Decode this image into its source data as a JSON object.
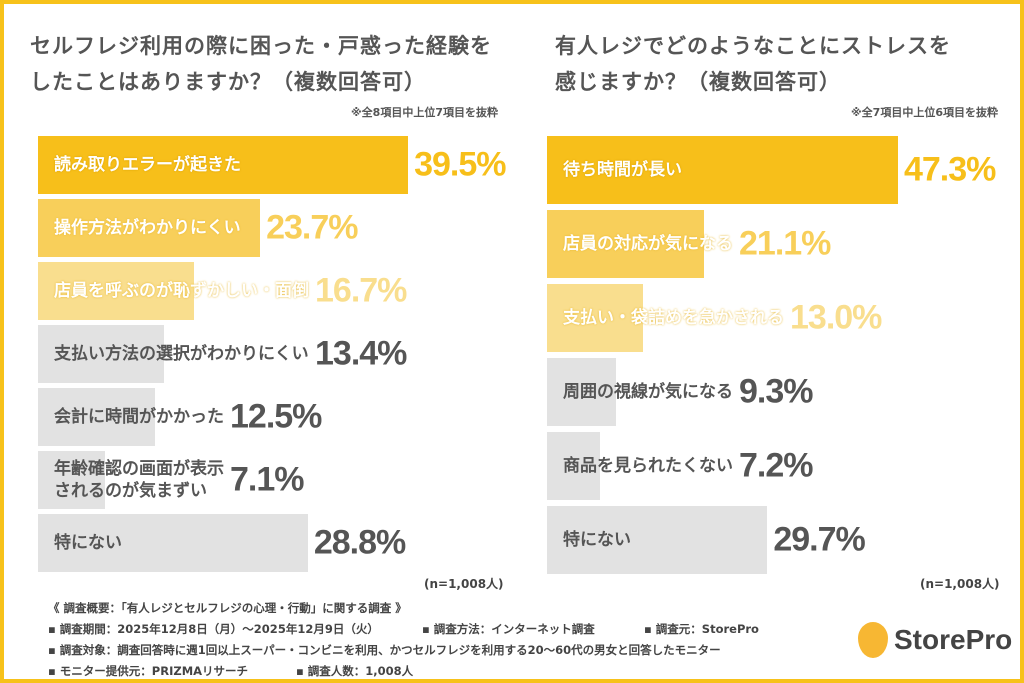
{
  "colors": {
    "accent": "#F7C21A",
    "bar1": "#F7BF1A",
    "bar2": "#F8CF5A",
    "bar3": "#F9DE8E",
    "gray": "#E2E2E2",
    "grayText": "#555555"
  },
  "chart_data": [
    {
      "type": "bar",
      "orientation": "horizontal",
      "title_line1": "セルフレジ利用の際に困った・戸惑った経験を",
      "title_line2": "したことはありますか？（複数回答可）",
      "note": "※全8項目中上位7項目を抜粋",
      "n_label": "(n=1,008人)",
      "categories": [
        "読み取りエラーが起きた",
        "操作方法がわかりにくい",
        "店員を呼ぶのが恥ずかしい・面倒",
        "支払い方法の選択がわかりにくい",
        "会計に時間がかかった",
        "年齢確認の画面が表示\nされるのが気まずい",
        "特にない"
      ],
      "values": [
        39.5,
        23.7,
        16.7,
        13.4,
        12.5,
        7.1,
        28.8
      ],
      "labels": [
        "39.5%",
        "23.7%",
        "16.7%",
        "13.4%",
        "12.5%",
        "7.1%",
        "28.8%"
      ],
      "unit": "%"
    },
    {
      "type": "bar",
      "orientation": "horizontal",
      "title_line1": "有人レジでどのようなことにストレスを",
      "title_line2": "感じますか？（複数回答可）",
      "note": "※全7項目中上位6項目を抜粋",
      "n_label": "(n=1,008人)",
      "categories": [
        "待ち時間が長い",
        "店員の対応が気になる",
        "支払い・袋詰めを急かされる",
        "周囲の視線が気になる",
        "商品を見られたくない",
        "特にない"
      ],
      "values": [
        47.3,
        21.1,
        13.0,
        9.3,
        7.2,
        29.7
      ],
      "labels": [
        "47.3%",
        "21.1%",
        "13.0%",
        "9.3%",
        "7.2%",
        "29.7%"
      ],
      "unit": "%"
    }
  ],
  "footer": {
    "heading": "《 調査概要：「有人レジとセルフレジの心理・行動」に関する調査 》",
    "period": "▪ 調査期間：2025年12月8日（月）～2025年12月9日（火）",
    "method": "▪ 調査方法：インターネット調査",
    "source": "▪ 調査元：StorePro",
    "target": "▪ 調査対象：調査回答時に週1回以上スーパー・コンビニを利用、かつセルフレジを利用する20～60代の男女と回答したモニター",
    "provider": "▪ モニター提供元：PRIZMAリサーチ",
    "count": "▪ 調査人数：1,008人"
  },
  "logo": {
    "text": "StorePro",
    "icon": "shopping-cart-pin-icon"
  }
}
